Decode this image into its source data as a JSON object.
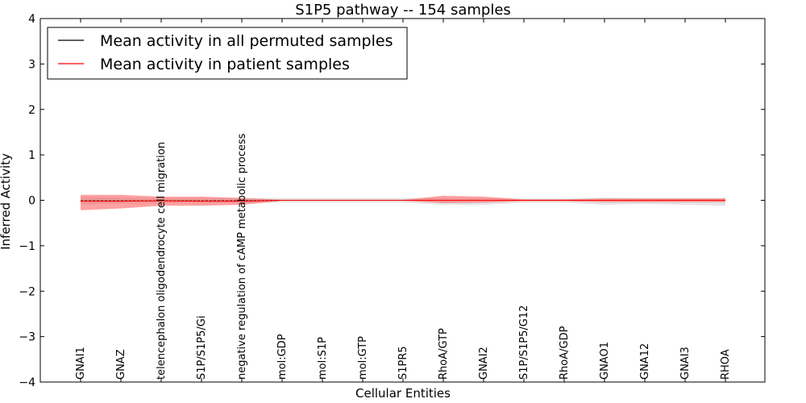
{
  "chart_data": {
    "type": "line",
    "title": "S1P5 pathway -- 154 samples",
    "xlabel": "Cellular Entities",
    "ylabel": "Inferred Activity",
    "ylim": [
      -4,
      4
    ],
    "yticks": [
      -4,
      -3,
      -2,
      -1,
      0,
      1,
      2,
      3,
      4
    ],
    "ytick_labels": [
      "−4",
      "−3",
      "−2",
      "−1",
      "0",
      "1",
      "2",
      "3",
      "4"
    ],
    "categories": [
      "GNAI1",
      "GNAZ",
      "telencephalon oligodendrocyte cell migration",
      "S1P/S1P5/Gi",
      "negative regulation of cAMP metabolic process",
      "mol:GDP",
      "mol:S1P",
      "mol:GTP",
      "S1PR5",
      "RhoA/GTP",
      "GNAI2",
      "S1P/S1P5/G12",
      "RhoA/GDP",
      "GNAO1",
      "GNA12",
      "GNAI3",
      "RHOA"
    ],
    "legend": {
      "position": "top-left",
      "entries": [
        {
          "label": "Mean activity in all permuted samples",
          "color": "#000000"
        },
        {
          "label": "Mean activity in patient samples",
          "color": "#ff0000"
        }
      ]
    },
    "series": [
      {
        "name": "Mean activity in all permuted samples",
        "color": "#000000",
        "values": [
          -0.01,
          -0.01,
          -0.01,
          -0.01,
          -0.01,
          0,
          0,
          0,
          0,
          0,
          0,
          0,
          0,
          0,
          0,
          0,
          0
        ],
        "band_upper": [
          0.07,
          0.06,
          0.05,
          0.05,
          0.05,
          0.05,
          0.05,
          0.05,
          0.05,
          0.05,
          0.05,
          0.04,
          0.04,
          0.06,
          0.05,
          0.05,
          0.05
        ],
        "band_lower": [
          -0.08,
          -0.07,
          -0.06,
          -0.06,
          -0.06,
          -0.05,
          -0.05,
          -0.05,
          -0.05,
          -0.1,
          -0.1,
          -0.05,
          -0.05,
          -0.1,
          -0.08,
          -0.1,
          -0.12
        ],
        "band_color": "#bbbbbb"
      },
      {
        "name": "Mean activity in patient samples",
        "color": "#ff0000",
        "values": [
          -0.02,
          -0.02,
          -0.01,
          -0.02,
          -0.02,
          0,
          0,
          0,
          0,
          0,
          0,
          0,
          0,
          0,
          0,
          0,
          0
        ],
        "band_upper": [
          0.12,
          0.12,
          0.08,
          0.08,
          0.05,
          0.01,
          0.01,
          0.01,
          0.01,
          0.1,
          0.08,
          0.02,
          0.02,
          0.04,
          0.04,
          0.04,
          0.04
        ],
        "band_lower": [
          -0.22,
          -0.18,
          -0.12,
          -0.12,
          -0.1,
          -0.01,
          -0.01,
          -0.01,
          -0.01,
          -0.06,
          -0.05,
          -0.02,
          -0.02,
          -0.04,
          -0.04,
          -0.04,
          -0.04
        ],
        "band_color": "#ff4444"
      }
    ],
    "grid": false
  }
}
